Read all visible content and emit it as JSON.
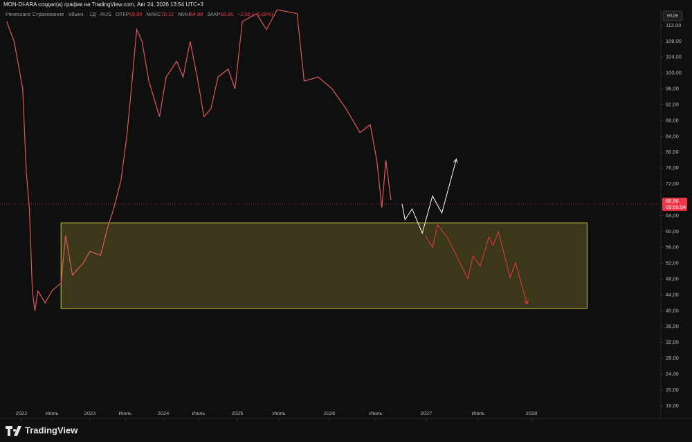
{
  "header": {
    "author_line": "MON-DI-ARA создал(а) график на TradingView.com, Авг 24, 2026 13:54 UTC+3",
    "logo": "TradingView"
  },
  "chart_data": {
    "type": "line",
    "symbol": "Ренессанс Страхование · обыкн. · 1Д · RUS",
    "ohlc": [
      {
        "label": "ОТКР",
        "value": "69,80"
      },
      {
        "label": "МАКС",
        "value": "70,12"
      },
      {
        "label": "МИН",
        "value": "64,88"
      },
      {
        "label": "ЗАКР",
        "value": "66,96"
      }
    ],
    "change": "−2,56 (−3,68%)",
    "currency": "RUB",
    "color": "#e05a5a",
    "x": [
      2021.76,
      2021.88,
      2022.02,
      2022.08,
      2022.13,
      2022.18,
      2022.22,
      2022.27,
      2022.39,
      2022.5,
      2022.62,
      2022.68,
      2022.77,
      2022.91,
      2023.0,
      2023.15,
      2023.25,
      2023.34,
      2023.44,
      2023.52,
      2023.58,
      2023.65,
      2023.72,
      2023.81,
      2023.95,
      2024.04,
      2024.19,
      2024.28,
      2024.38,
      2024.48,
      2024.57,
      2024.66,
      2024.75,
      2024.88,
      2024.97,
      2025.06,
      2025.23,
      2025.35,
      2025.48,
      2025.68,
      2025.75,
      2025.89,
      2026.03,
      2026.18,
      2026.33,
      2026.44,
      2026.51,
      2026.56,
      2026.6,
      2026.65
    ],
    "values": [
      113,
      108,
      96,
      75,
      66,
      45,
      40,
      45,
      42,
      45,
      47,
      59,
      49,
      52,
      55,
      54,
      61,
      66,
      73,
      84,
      96,
      111,
      108,
      98,
      89,
      99,
      103,
      99,
      108,
      99,
      89,
      91,
      99,
      101,
      96,
      113,
      115,
      111,
      116,
      115,
      98,
      99,
      96,
      91,
      85,
      87,
      78,
      66,
      78,
      68
    ],
    "xlim": [
      2021.65,
      2029.21
    ],
    "xticks": [
      2022,
      {
        "value": 2022.5,
        "label": "Июль"
      },
      2023,
      {
        "value": 2023.5,
        "label": "Июль"
      },
      2024,
      {
        "value": 2024.5,
        "label": "Июль"
      },
      2025,
      {
        "value": 2025.5,
        "label": "Июль"
      },
      2026,
      {
        "value": 2026.5,
        "label": "Июль"
      },
      2027,
      {
        "value": 2027.5,
        "label": "Июль"
      },
      2028
    ],
    "ylim": [
      13.7,
      116.0
    ],
    "yticks": [
      {
        "value": 16,
        "label": "16,00"
      },
      {
        "value": 20,
        "label": "20,00"
      },
      {
        "value": 24,
        "label": "24,00"
      },
      {
        "value": 28,
        "label": "28,00"
      },
      {
        "value": 32,
        "label": "32,00"
      },
      {
        "value": 36,
        "label": "36,00"
      },
      {
        "value": 40,
        "label": "40,00"
      },
      {
        "value": 44,
        "label": "44,00"
      },
      {
        "value": 48,
        "label": "48,00"
      },
      {
        "value": 52,
        "label": "52,00"
      },
      {
        "value": 56,
        "label": "56,00"
      },
      {
        "value": 60,
        "label": "60,00"
      },
      {
        "value": 64,
        "label": "64,00"
      },
      {
        "value": 68,
        "label": "68,00"
      },
      {
        "value": 72,
        "label": "72,00"
      },
      {
        "value": 76,
        "label": "76,00"
      },
      {
        "value": 80,
        "label": "80,00"
      },
      {
        "value": 84,
        "label": "84,00"
      },
      {
        "value": 88,
        "label": "88,00"
      },
      {
        "value": 92,
        "label": "92,00"
      },
      {
        "value": 96,
        "label": "96,00"
      },
      {
        "value": 100,
        "label": "100,00"
      },
      {
        "value": 104,
        "label": "104,00"
      },
      {
        "value": 108,
        "label": "108,00"
      },
      {
        "value": 112,
        "label": "112,00"
      }
    ],
    "zone": {
      "x0": 2022.62,
      "x1": 2028.52,
      "top": 62.2,
      "bottom": 40.6,
      "color": "#d9c84a"
    },
    "drawings": [
      {
        "color": "#ffffff",
        "x": [
          2026.76,
          2026.79,
          2026.86,
          2026.96,
          2027.06,
          2027.15,
          2027.29
        ],
        "values": [
          67,
          63,
          65.7,
          59.6,
          69,
          64.7,
          78.3
        ]
      },
      {
        "color": "#f23645",
        "x": [
          2026.99,
          2027.06,
          2027.11,
          2027.21,
          2027.4,
          2027.45,
          2027.52,
          2027.6,
          2027.64,
          2027.69,
          2027.8,
          2027.85,
          2027.96
        ],
        "values": [
          59,
          56,
          61.7,
          58.2,
          48.1,
          53.9,
          51.3,
          58.6,
          56.5,
          60,
          48.3,
          52.1,
          41.7
        ]
      }
    ],
    "last_price": {
      "value": 66.96,
      "label": "66,96",
      "color": "#f23645"
    },
    "countdown": "09:55:54"
  }
}
